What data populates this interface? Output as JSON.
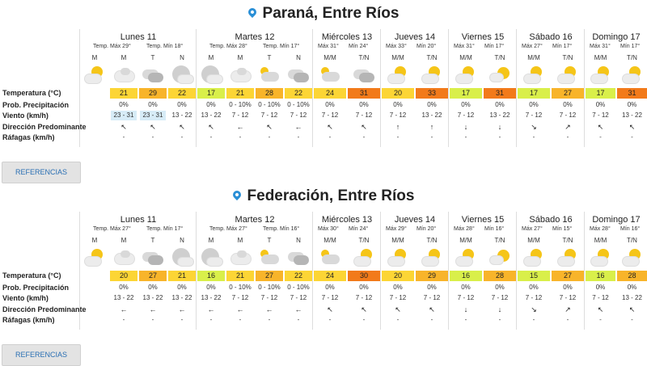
{
  "blocks": [
    {
      "title": "Paraná, Entre Ríos",
      "row_labels": [
        "Temperatura (°C)",
        "Prob. Precipitación",
        "Viento (km/h)",
        "Dirección Predominante",
        "Ráfagas (km/h)"
      ],
      "ref_button": "REFERENCIAS",
      "days": [
        {
          "name": "Lunes 11",
          "tmax": "Temp. Máx 29°",
          "tmin": "Temp. Mín 18°",
          "periods": [
            "M",
            "M",
            "T",
            "N"
          ],
          "icons": [
            "sun-cloud",
            "cloud-light",
            "cloud-dark",
            "moon-cloud"
          ],
          "temps": [
            {
              "v": "",
              "c": "#ffffff"
            },
            {
              "v": "21",
              "c": "#fcd535"
            },
            {
              "v": "29",
              "c": "#f8b42a"
            },
            {
              "v": "22",
              "c": "#fcd535"
            }
          ],
          "precip": [
            "",
            "0%",
            "0%",
            "0%"
          ],
          "wind": [
            "",
            "23 - 31",
            "23 - 31",
            "13 - 22"
          ],
          "wind_hl": [
            false,
            true,
            true,
            false
          ],
          "dir": [
            "",
            "↖",
            "↖",
            "↖"
          ],
          "gust": [
            "",
            "-",
            "-",
            "-"
          ]
        },
        {
          "name": "Martes 12",
          "tmax": "Temp. Máx 28°",
          "tmin": "Temp. Mín 17°",
          "periods": [
            "M",
            "M",
            "T",
            "N"
          ],
          "icons": [
            "moon-cloud",
            "cloud-light",
            "cloud-sun",
            "cloud-dark"
          ],
          "temps": [
            {
              "v": "17",
              "c": "#d9ef4a"
            },
            {
              "v": "21",
              "c": "#fcd535"
            },
            {
              "v": "28",
              "c": "#f8b42a"
            },
            {
              "v": "22",
              "c": "#fcd535"
            }
          ],
          "precip": [
            "0%",
            "0 - 10%",
            "0 - 10%",
            "0 - 10%"
          ],
          "wind": [
            "13 - 22",
            "7 - 12",
            "7 - 12",
            "7 - 12"
          ],
          "wind_hl": [
            false,
            false,
            false,
            false
          ],
          "dir": [
            "↖",
            "←",
            "↖",
            "←"
          ],
          "gust": [
            "-",
            "-",
            "-",
            "-"
          ]
        },
        {
          "name": "Miércoles 13",
          "tmax": "Máx 31°",
          "tmin": "Mín 24°",
          "periods": [
            "M/M",
            "T/N"
          ],
          "icons": [
            "cloud-sun",
            "cloud-dark"
          ],
          "temps": [
            {
              "v": "24",
              "c": "#fcd535"
            },
            {
              "v": "31",
              "c": "#f27a1a"
            }
          ],
          "precip": [
            "0%",
            "0%"
          ],
          "wind": [
            "7 - 12",
            "7 - 12"
          ],
          "wind_hl": [
            false,
            false
          ],
          "dir": [
            "↖",
            "↖"
          ],
          "gust": [
            "-",
            "-"
          ]
        },
        {
          "name": "Jueves 14",
          "tmax": "Máx 33°",
          "tmin": "Mín 20°",
          "periods": [
            "M/M",
            "T/N"
          ],
          "icons": [
            "sun-cloud",
            "sun-cloud"
          ],
          "temps": [
            {
              "v": "20",
              "c": "#fcd535"
            },
            {
              "v": "33",
              "c": "#f27a1a"
            }
          ],
          "precip": [
            "0%",
            "0%"
          ],
          "wind": [
            "7 - 12",
            "13 - 22"
          ],
          "wind_hl": [
            false,
            false
          ],
          "dir": [
            "↑",
            "↑"
          ],
          "gust": [
            "-",
            "-"
          ]
        },
        {
          "name": "Viernes 15",
          "tmax": "Máx 31°",
          "tmin": "Mín 17°",
          "periods": [
            "M/M",
            "T/N"
          ],
          "icons": [
            "sun-cloud",
            "moon-sun"
          ],
          "temps": [
            {
              "v": "17",
              "c": "#d9ef4a"
            },
            {
              "v": "31",
              "c": "#f27a1a"
            }
          ],
          "precip": [
            "0%",
            "0%"
          ],
          "wind": [
            "7 - 12",
            "13 - 22"
          ],
          "wind_hl": [
            false,
            false
          ],
          "dir": [
            "↓",
            "↓"
          ],
          "gust": [
            "-",
            "-"
          ]
        },
        {
          "name": "Sábado 16",
          "tmax": "Máx 27°",
          "tmin": "Mín 17°",
          "periods": [
            "M/M",
            "T/N"
          ],
          "icons": [
            "sun-cloud",
            "sun-cloud"
          ],
          "temps": [
            {
              "v": "17",
              "c": "#d9ef4a"
            },
            {
              "v": "27",
              "c": "#f8b42a"
            }
          ],
          "precip": [
            "0%",
            "0%"
          ],
          "wind": [
            "7 - 12",
            "7 - 12"
          ],
          "wind_hl": [
            false,
            false
          ],
          "dir": [
            "↘",
            "↗"
          ],
          "gust": [
            "-",
            "-"
          ]
        },
        {
          "name": "Domingo 17",
          "tmax": "Máx 31°",
          "tmin": "Mín 17°",
          "periods": [
            "M/M",
            "T/N"
          ],
          "icons": [
            "sun-cloud",
            "sun-cloud"
          ],
          "temps": [
            {
              "v": "17",
              "c": "#d9ef4a"
            },
            {
              "v": "31",
              "c": "#f27a1a"
            }
          ],
          "precip": [
            "0%",
            "0%"
          ],
          "wind": [
            "7 - 12",
            "13 - 22"
          ],
          "wind_hl": [
            false,
            false
          ],
          "dir": [
            "↖",
            "↖"
          ],
          "gust": [
            "-",
            "-"
          ]
        }
      ]
    },
    {
      "title": "Federación, Entre Ríos",
      "row_labels": [
        "Temperatura (°C)",
        "Prob. Precipitación",
        "Viento (km/h)",
        "Dirección Predominante",
        "Ráfagas (km/h)"
      ],
      "ref_button": "REFERENCIAS",
      "days": [
        {
          "name": "Lunes 11",
          "tmax": "Temp. Máx 27°",
          "tmin": "Temp. Mín 17°",
          "periods": [
            "M",
            "M",
            "T",
            "N"
          ],
          "icons": [
            "sun-cloud",
            "cloud-light",
            "cloud-dark",
            "moon-cloud"
          ],
          "temps": [
            {
              "v": "",
              "c": "#ffffff"
            },
            {
              "v": "20",
              "c": "#fcd535"
            },
            {
              "v": "27",
              "c": "#f8b42a"
            },
            {
              "v": "21",
              "c": "#fcd535"
            }
          ],
          "precip": [
            "",
            "0%",
            "0%",
            "0%"
          ],
          "wind": [
            "",
            "13 - 22",
            "13 - 22",
            "13 - 22"
          ],
          "wind_hl": [
            false,
            false,
            false,
            false
          ],
          "dir": [
            "",
            "←",
            "←",
            "←"
          ],
          "gust": [
            "",
            "-",
            "-",
            "-"
          ]
        },
        {
          "name": "Martes 12",
          "tmax": "Temp. Máx 27°",
          "tmin": "Temp. Mín 16°",
          "periods": [
            "M",
            "M",
            "T",
            "N"
          ],
          "icons": [
            "moon-cloud",
            "cloud-light",
            "cloud-sun",
            "cloud-dark"
          ],
          "temps": [
            {
              "v": "16",
              "c": "#d9ef4a"
            },
            {
              "v": "21",
              "c": "#fcd535"
            },
            {
              "v": "27",
              "c": "#f8b42a"
            },
            {
              "v": "22",
              "c": "#fcd535"
            }
          ],
          "precip": [
            "0%",
            "0 - 10%",
            "0 - 10%",
            "0 - 10%"
          ],
          "wind": [
            "13 - 22",
            "7 - 12",
            "7 - 12",
            "7 - 12"
          ],
          "wind_hl": [
            false,
            false,
            false,
            false
          ],
          "dir": [
            "←",
            "←",
            "←",
            "←"
          ],
          "gust": [
            "-",
            "-",
            "-",
            "-"
          ]
        },
        {
          "name": "Miércoles 13",
          "tmax": "Máx 30°",
          "tmin": "Mín 24°",
          "periods": [
            "M/M",
            "T/N"
          ],
          "icons": [
            "cloud-sun",
            "sun-cloud"
          ],
          "temps": [
            {
              "v": "24",
              "c": "#fcd535"
            },
            {
              "v": "30",
              "c": "#f27a1a"
            }
          ],
          "precip": [
            "0%",
            "0%"
          ],
          "wind": [
            "7 - 12",
            "7 - 12"
          ],
          "wind_hl": [
            false,
            false
          ],
          "dir": [
            "↖",
            "↖"
          ],
          "gust": [
            "-",
            "-"
          ]
        },
        {
          "name": "Jueves 14",
          "tmax": "Máx 29°",
          "tmin": "Mín 20°",
          "periods": [
            "M/M",
            "T/N"
          ],
          "icons": [
            "sun-cloud",
            "sun-cloud"
          ],
          "temps": [
            {
              "v": "20",
              "c": "#fcd535"
            },
            {
              "v": "29",
              "c": "#f8b42a"
            }
          ],
          "precip": [
            "0%",
            "0%"
          ],
          "wind": [
            "7 - 12",
            "7 - 12"
          ],
          "wind_hl": [
            false,
            false
          ],
          "dir": [
            "↖",
            "↖"
          ],
          "gust": [
            "-",
            "-"
          ]
        },
        {
          "name": "Viernes 15",
          "tmax": "Máx 28°",
          "tmin": "Mín 16°",
          "periods": [
            "M/M",
            "T/N"
          ],
          "icons": [
            "sun-cloud",
            "moon-sun"
          ],
          "temps": [
            {
              "v": "16",
              "c": "#d9ef4a"
            },
            {
              "v": "28",
              "c": "#f8b42a"
            }
          ],
          "precip": [
            "0%",
            "0%"
          ],
          "wind": [
            "7 - 12",
            "7 - 12"
          ],
          "wind_hl": [
            false,
            false
          ],
          "dir": [
            "↓",
            "↓"
          ],
          "gust": [
            "-",
            "-"
          ]
        },
        {
          "name": "Sábado 16",
          "tmax": "Máx 27°",
          "tmin": "Mín 15°",
          "periods": [
            "M/M",
            "T/N"
          ],
          "icons": [
            "sun-cloud",
            "sun-cloud"
          ],
          "temps": [
            {
              "v": "15",
              "c": "#d9ef4a"
            },
            {
              "v": "27",
              "c": "#f8b42a"
            }
          ],
          "precip": [
            "0%",
            "0%"
          ],
          "wind": [
            "7 - 12",
            "7 - 12"
          ],
          "wind_hl": [
            false,
            false
          ],
          "dir": [
            "↘",
            "↗"
          ],
          "gust": [
            "-",
            "-"
          ]
        },
        {
          "name": "Domingo 17",
          "tmax": "Máx 28°",
          "tmin": "Mín 16°",
          "periods": [
            "M/M",
            "T/N"
          ],
          "icons": [
            "sun-cloud",
            "sun-cloud"
          ],
          "temps": [
            {
              "v": "16",
              "c": "#d9ef4a"
            },
            {
              "v": "28",
              "c": "#f8b42a"
            }
          ],
          "precip": [
            "0%",
            "0%"
          ],
          "wind": [
            "7 - 12",
            "13 - 22"
          ],
          "wind_hl": [
            false,
            false
          ],
          "dir": [
            "↖",
            "↖"
          ],
          "gust": [
            "-",
            "-"
          ]
        }
      ]
    }
  ]
}
